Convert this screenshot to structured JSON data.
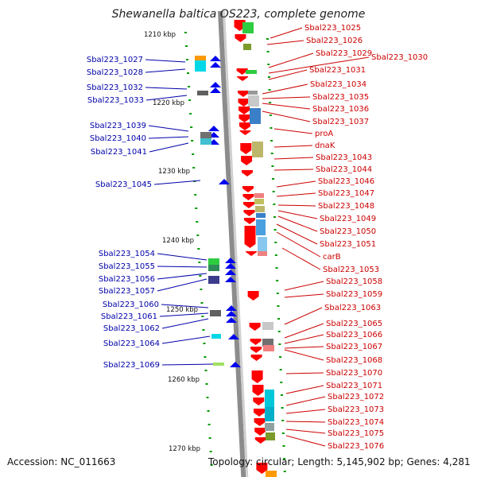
{
  "title": "Shewanella baltica OS223, complete genome",
  "footer": {
    "accession": "Accession: NC_011663",
    "topology": "Topology: circular; Length: 5,145,902 bp; Genes: 4,281"
  },
  "colors": {
    "forward": "#ff0000",
    "reverse": "#0000ee",
    "forward_label": "#cc0000",
    "reverse_label": "#0000aa",
    "tick": "#009900"
  },
  "scale_labels": [
    "1210 kbp",
    "1220 kbp",
    "1230 kbp",
    "1240 kbp",
    "1250 kbp",
    "1260 kbp",
    "1270 kbp"
  ],
  "forward_genes": [
    "Sbal223_1025",
    "Sbal223_1026",
    "Sbal223_1029",
    "Sbal223_1030",
    "Sbal223_1031",
    "Sbal223_1034",
    "Sbal223_1035",
    "Sbal223_1036",
    "Sbal223_1037",
    "proA",
    "dnaK",
    "Sbal223_1043",
    "Sbal223_1044",
    "Sbal223_1046",
    "Sbal223_1047",
    "Sbal223_1048",
    "Sbal223_1049",
    "Sbal223_1050",
    "Sbal223_1051",
    "carB",
    "Sbal223_1053",
    "Sbal223_1058",
    "Sbal223_1059",
    "Sbal223_1063",
    "Sbal223_1065",
    "Sbal223_1066",
    "Sbal223_1067",
    "Sbal223_1068",
    "Sbal223_1070",
    "Sbal223_1071",
    "Sbal223_1072",
    "Sbal223_1073",
    "Sbal223_1074",
    "Sbal223_1075",
    "Sbal223_1076"
  ],
  "reverse_genes": [
    "Sbal223_1027",
    "Sbal223_1028",
    "Sbal223_1032",
    "Sbal223_1033",
    "Sbal223_1039",
    "Sbal223_1040",
    "Sbal223_1041",
    "Sbal223_1045",
    "Sbal223_1054",
    "Sbal223_1055",
    "Sbal223_1056",
    "Sbal223_1057",
    "Sbal223_1060",
    "Sbal223_1061",
    "Sbal223_1062",
    "Sbal223_1064",
    "Sbal223_1069"
  ]
}
